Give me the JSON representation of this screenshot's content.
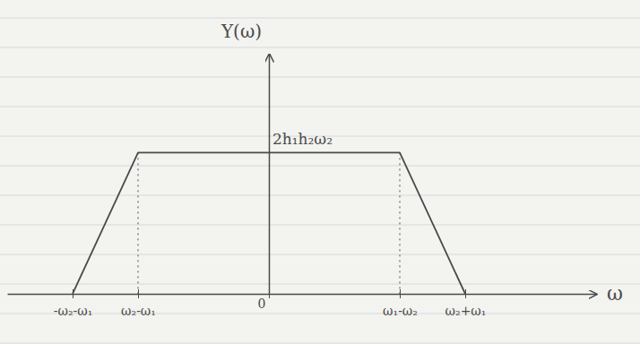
{
  "chart_data": {
    "type": "line",
    "x_label": "ω",
    "y_label": "Y(ω)",
    "x": [
      -3,
      -2,
      2,
      3
    ],
    "values": [
      0,
      1,
      1,
      0
    ],
    "color": "#4a4a4a",
    "xlim": [
      -4,
      5
    ],
    "xticks": [
      {
        "value": -3,
        "label": "-ω₂-ω₁"
      },
      {
        "value": -2,
        "label": "ω₂-ω₁"
      },
      0,
      {
        "value": 2,
        "label": "ω₁-ω₂"
      },
      {
        "value": 3,
        "label": "ω₂+ω₁"
      }
    ],
    "ylim": [
      0,
      1.7
    ],
    "yticks": [
      {
        "value": 1,
        "label": "2h₁h₂ω₂"
      }
    ],
    "grid": false
  }
}
